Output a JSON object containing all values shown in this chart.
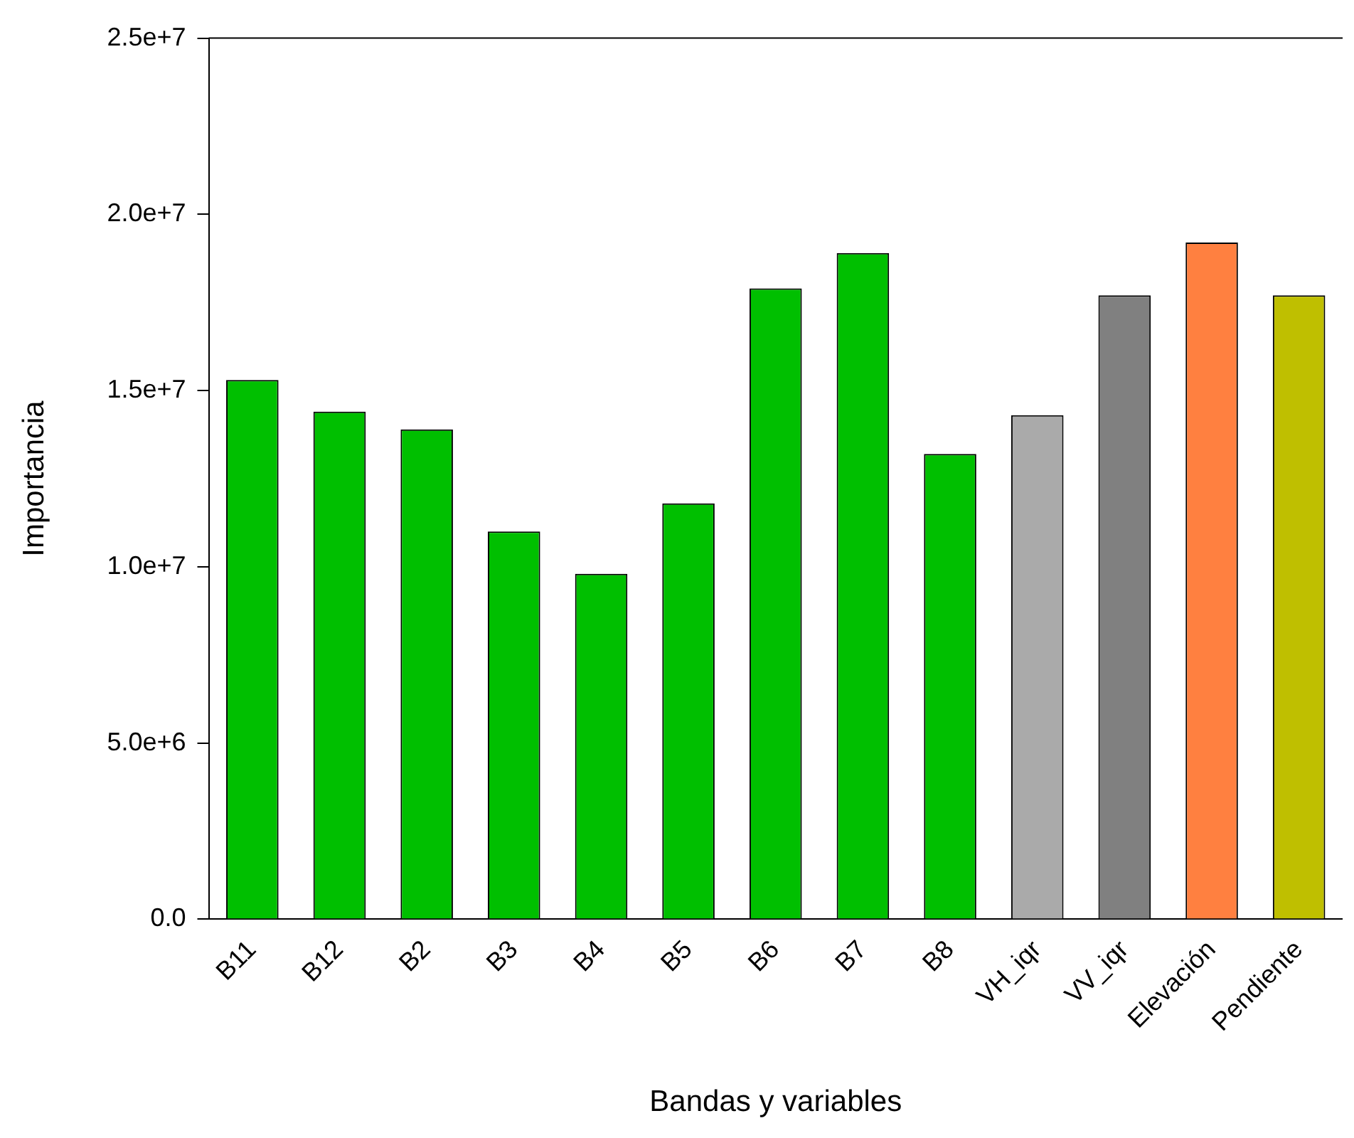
{
  "chart_data": {
    "type": "bar",
    "xlabel": "Bandas y variables",
    "ylabel": "Importancia",
    "categories": [
      "B11",
      "B12",
      "B2",
      "B3",
      "B4",
      "B5",
      "B6",
      "B7",
      "B8",
      "VH_iqr",
      "VV_iqr",
      "Elevación",
      "Pendiente"
    ],
    "values": [
      15300000,
      14400000,
      13900000,
      11000000,
      9800000,
      11800000,
      17900000,
      18900000,
      13200000,
      14300000,
      17700000,
      19200000,
      17700000
    ],
    "colors": [
      "#00bf00",
      "#00bf00",
      "#00bf00",
      "#00bf00",
      "#00bf00",
      "#00bf00",
      "#00bf00",
      "#00bf00",
      "#00bf00",
      "#aaaaaa",
      "#808080",
      "#ff8040",
      "#bfbf00"
    ],
    "ylim": [
      0,
      25000000
    ],
    "yticks": [
      {
        "value": 0,
        "label": "0.0"
      },
      {
        "value": 5000000,
        "label": "5.0e+6"
      },
      {
        "value": 10000000,
        "label": "1.0e+7"
      },
      {
        "value": 15000000,
        "label": "1.5e+7"
      },
      {
        "value": 20000000,
        "label": "2.0e+7"
      },
      {
        "value": 25000000,
        "label": "2.5e+7"
      }
    ],
    "grid": false,
    "legend": false
  }
}
